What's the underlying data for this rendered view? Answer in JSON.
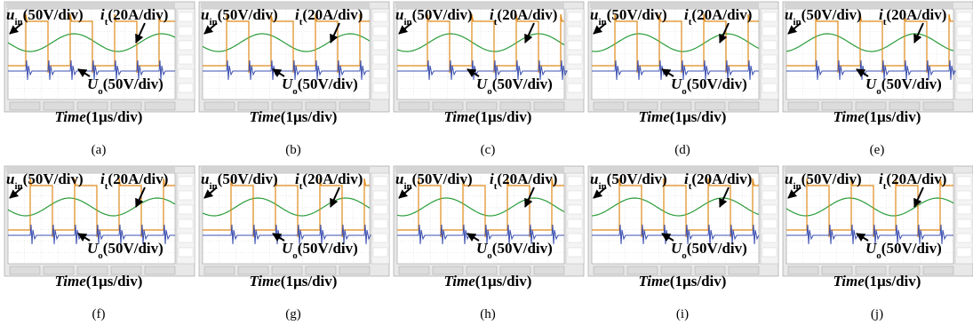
{
  "labels": {
    "u": "u",
    "in": "in",
    "u_div": "(50V/div)",
    "i": "i",
    "t": "t",
    "i_div": "(20A/div)",
    "U": "U",
    "o": "o",
    "U_div": "(50V/div)",
    "time": "Time",
    "time_div": "(1µs/div)"
  },
  "panels": [
    {
      "caption": "(a)"
    },
    {
      "caption": "(b)"
    },
    {
      "caption": "(c)"
    },
    {
      "caption": "(d)"
    },
    {
      "caption": "(e)"
    },
    {
      "caption": "(f)"
    },
    {
      "caption": "(g)"
    },
    {
      "caption": "(h)"
    },
    {
      "caption": "(i)"
    },
    {
      "caption": "(j)"
    }
  ]
}
